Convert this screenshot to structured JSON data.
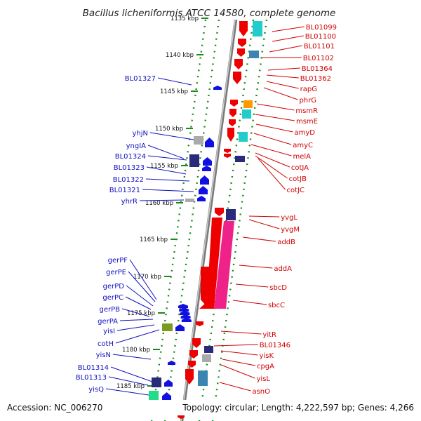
{
  "title": "Bacillus licheniformis ATCC 14580, complete genome",
  "accession": "Accession: NC_006270",
  "summary": "Topology: circular; Length: 4,222,597 bp; Genes: 4,266",
  "scale_ticks": [
    "1135 kbp",
    "1140 kbp",
    "1145 kbp",
    "1150 kbp",
    "1155 kbp",
    "1160 kbp",
    "1165 kbp",
    "1170 kbp",
    "1175 kbp",
    "1180 kbp",
    "1185 kbp"
  ],
  "colors": {
    "reverse_strand_label": "#1010c0",
    "forward_strand_label": "#d00000",
    "backbone": "#888888",
    "tick_mark": "#1a8a1a",
    "gene_red": "#ee0000",
    "gene_blue": "#1010e0",
    "gene_pink": "#ee2288",
    "gene_cyan": "#22cccc",
    "gene_orange": "#ff9900",
    "gene_navy": "#2a2a7a",
    "gene_olive": "#7a9a20",
    "gene_teal": "#3a86b0",
    "gene_gray": "#aaaaaa",
    "gene_green": "#22dd88"
  },
  "left_labels": [
    "BL01327",
    "yhjN",
    "yngIA",
    "BL01324",
    "BL01323",
    "BL01322",
    "BL01321",
    "yhrR",
    "gerPF",
    "gerPE",
    "gerPD",
    "gerPC",
    "gerPB",
    "gerPA",
    "yisI",
    "cotH",
    "yisN",
    "BL01314",
    "BL01313",
    "yisQ"
  ],
  "right_labels": [
    "BL01099",
    "BL01100",
    "BL01101",
    "BL01102",
    "BL01364",
    "BL01362",
    "rapG",
    "phrG",
    "msmR",
    "msmE",
    "amyD",
    "amyC",
    "melA",
    "cotJA",
    "cotJB",
    "cotJC",
    "yvgL",
    "yvgM",
    "addB",
    "addA",
    "sbcD",
    "sbcC",
    "yitR",
    "BL01346",
    "yisK",
    "cpgA",
    "yisL",
    "asnO"
  ]
}
